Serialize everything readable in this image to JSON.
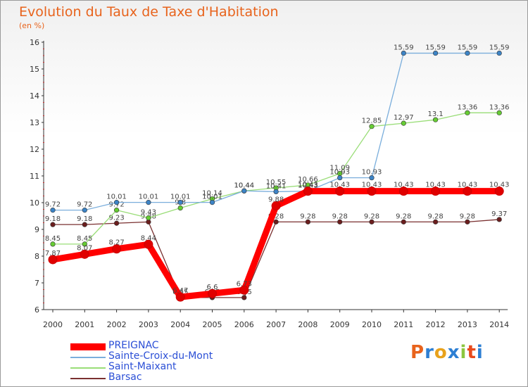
{
  "chart_data": {
    "type": "line",
    "title": "Evolution du Taux de Taxe d'Habitation",
    "unit_label": "(en %)",
    "x": [
      "2000",
      "2001",
      "2002",
      "2003",
      "2004",
      "2005",
      "2006",
      "2007",
      "2008",
      "2009",
      "2010",
      "2011",
      "2012",
      "2013",
      "2014"
    ],
    "ylim": [
      6,
      16
    ],
    "yticks": [
      "6",
      "7",
      "8",
      "9",
      "10",
      "11",
      "12",
      "13",
      "14",
      "15",
      "16"
    ],
    "grid": false,
    "legend_position": "bottom-left",
    "series": [
      {
        "name": "PREIGNAC",
        "color": "#ff0000",
        "marker": "#e00000",
        "values": [
          7.87,
          8.07,
          8.27,
          8.44,
          6.47,
          6.6,
          6.73,
          9.88,
          10.43,
          10.43,
          10.43,
          10.43,
          10.43,
          10.43,
          10.43
        ],
        "labels": [
          "7.87",
          "8.07",
          "8.27",
          "8.44",
          "6.47",
          "6.6",
          "6.73",
          "9.88",
          "10.43",
          "10.43",
          "10.43",
          "10.43",
          "10.43",
          "10.43",
          "10.43"
        ]
      },
      {
        "name": "Sainte-Croix-du-Mont",
        "color": "#7aaedc",
        "marker": "#3d84c6",
        "values": [
          9.72,
          9.72,
          10.01,
          10.01,
          10.01,
          10.01,
          10.44,
          10.41,
          10.43,
          10.93,
          10.93,
          15.59,
          15.59,
          15.59,
          15.59
        ],
        "labels": [
          "9.72",
          "9.72",
          "10.01",
          "10.01",
          "10.01",
          "10.01",
          "10.44",
          "10.41",
          "10.43",
          "10.93",
          "10.93",
          "15.59",
          "15.59",
          "15.59",
          "15.59"
        ]
      },
      {
        "name": "Saint-Maixant",
        "color": "#99dd77",
        "marker": "#66cc33",
        "values": [
          8.45,
          8.45,
          9.72,
          9.43,
          9.8,
          10.14,
          10.44,
          10.55,
          10.66,
          11.09,
          12.85,
          12.97,
          13.1,
          13.36,
          13.36
        ],
        "labels": [
          "8.45",
          "8.45",
          "9.72",
          "9.43",
          "9.8",
          "10.14",
          "10.44",
          "10.55",
          "10.66",
          "11.09",
          "12.85",
          "12.97",
          "13.1",
          "13.36",
          "13.36"
        ]
      },
      {
        "name": "Barsac",
        "color": "#7a3030",
        "marker": "#6b1e1e",
        "values": [
          9.18,
          9.18,
          9.23,
          9.28,
          6.45,
          6.45,
          6.45,
          9.28,
          9.28,
          9.28,
          9.28,
          9.28,
          9.28,
          9.28,
          9.37
        ],
        "labels": [
          "9.18",
          "9.18",
          "9.23",
          "9.28",
          "6.45",
          "6.45",
          "6.45",
          "9.28",
          "9.28",
          "9.28",
          "9.28",
          "9.28",
          "9.28",
          "9.28",
          "9.37"
        ]
      }
    ]
  },
  "logo_text": "Proxiti",
  "logo_colors": [
    "#e8631c",
    "#2d7fd3",
    "#e8a21c",
    "#2d7fd3",
    "#8cc63f",
    "#e84a1c",
    "#2d7fd3"
  ]
}
